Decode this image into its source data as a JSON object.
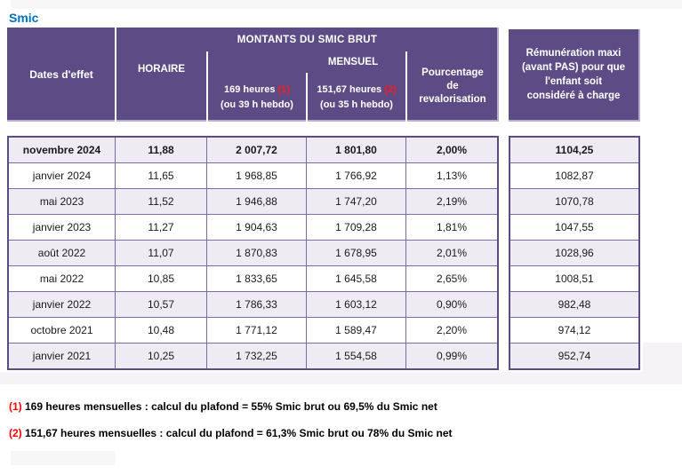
{
  "page": {
    "title": "Smic"
  },
  "colors": {
    "header_purple": "#5d4b85",
    "border_purple": "#7d6aa5",
    "alt_row": "#eeebf2",
    "title_blue": "#0070c0",
    "footnote_red": "#ff0000"
  },
  "header": {
    "dates": "Dates d'effet",
    "montants": "MONTANTS DU SMIC BRUT",
    "horaire": "HORAIRE",
    "mensuel": "MENSUEL",
    "m169": {
      "label": "169 heures ",
      "note": "(1)",
      "sub": "(ou 39 h hebdo)"
    },
    "m151": {
      "label": "151,67 heures ",
      "note": "(2)",
      "sub": "(ou 35 h hebdo)"
    },
    "pourcentage": "Pourcentage\nde\nrevalorisation",
    "remuneration": "Rémunération maxi\n(avant PAS) pour que\nl'enfant soit\nconsidéré à charge"
  },
  "rows": [
    {
      "date": "novembre 2024",
      "horaire": "11,88",
      "m169": "2 007,72",
      "m151": "1 801,80",
      "pct": "2,00%",
      "remu": "1104,25",
      "bold": true
    },
    {
      "date": "janvier 2024",
      "horaire": "11,65",
      "m169": "1 968,85",
      "m151": "1 766,92",
      "pct": "1,13%",
      "remu": "1082,87"
    },
    {
      "date": "mai 2023",
      "horaire": "11,52",
      "m169": "1 946,88",
      "m151": "1 747,20",
      "pct": "2,19%",
      "remu": "1070,78"
    },
    {
      "date": "janvier 2023",
      "horaire": "11,27",
      "m169": "1 904,63",
      "m151": "1 709,28",
      "pct": "1,81%",
      "remu": "1047,55"
    },
    {
      "date": "août 2022",
      "horaire": "11,07",
      "m169": "1 870,83",
      "m151": "1 678,95",
      "pct": "2,01%",
      "remu": "1028,96"
    },
    {
      "date": "mai 2022",
      "horaire": "10,85",
      "m169": "1 833,65",
      "m151": "1 645,58",
      "pct": "2,65%",
      "remu": "1008,51"
    },
    {
      "date": "janvier 2022",
      "horaire": "10,57",
      "m169": "1 786,33",
      "m151": "1 603,12",
      "pct": "0,90%",
      "remu": "982,48"
    },
    {
      "date": "octobre 2021",
      "horaire": "10,48",
      "m169": "1 771,12",
      "m151": "1 589,47",
      "pct": "2,20%",
      "remu": "974,12"
    },
    {
      "date": "janvier 2021",
      "horaire": "10,25",
      "m169": "1 732,25",
      "m151": "1 554,58",
      "pct": "0,99%",
      "remu": "952,74"
    }
  ],
  "footnotes": [
    {
      "marker": "(1)",
      "text": " 169 heures mensuelles : calcul du plafond = 55% Smic brut ou 69,5% du Smic net"
    },
    {
      "marker": "(2)",
      "text": " 151,67 heures mensuelles : calcul du plafond = 61,3% Smic brut ou 78% du Smic net"
    }
  ]
}
